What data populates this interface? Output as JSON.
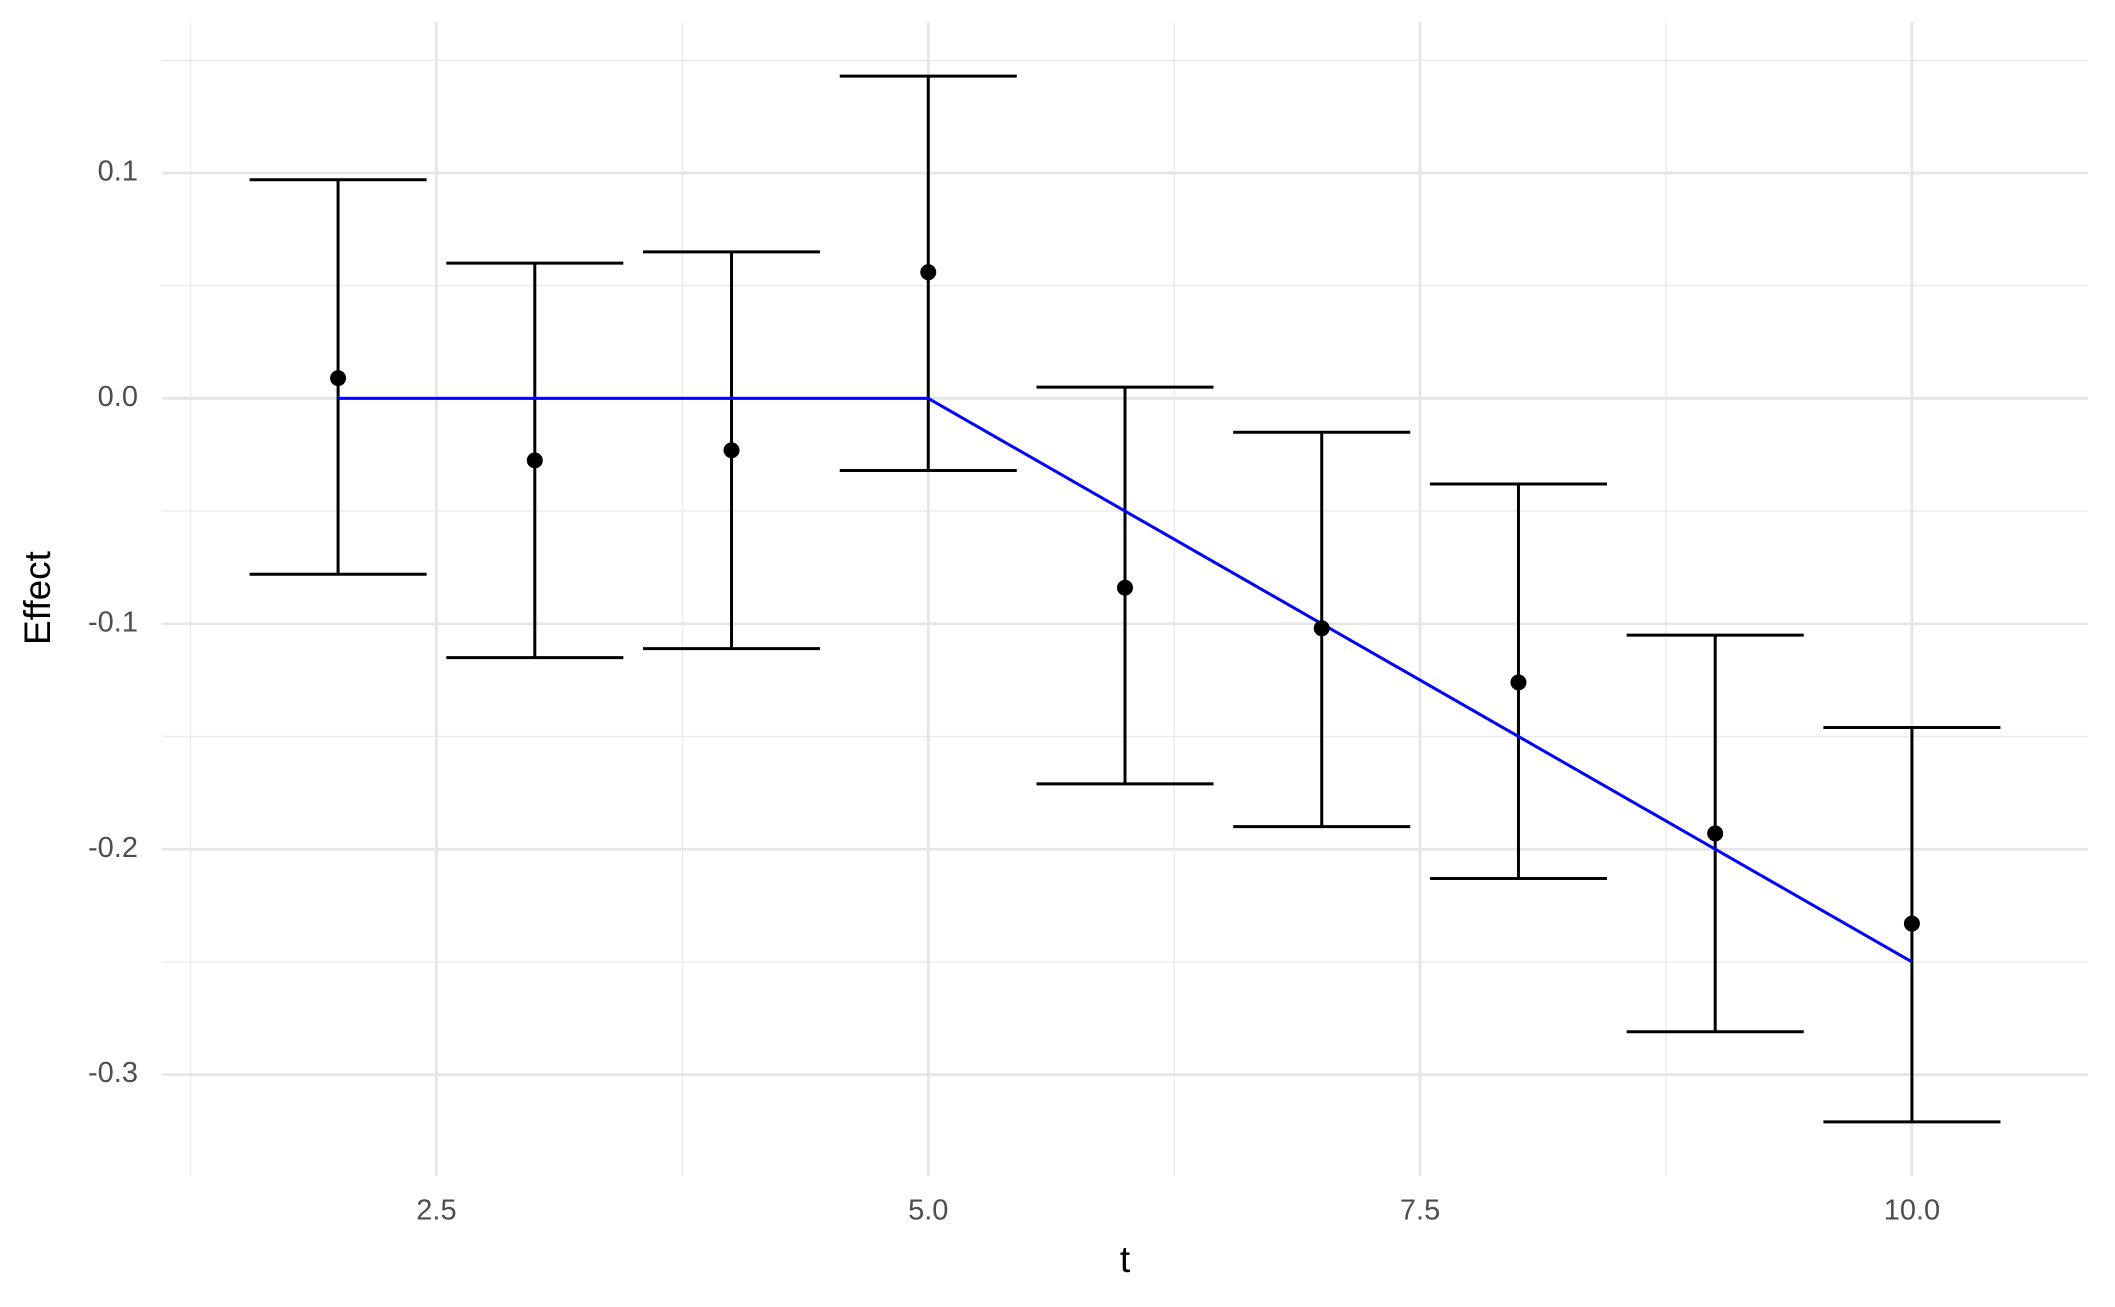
{
  "chart_data": {
    "type": "errorbar",
    "x_label": "t",
    "y_label": "Effect",
    "x": [
      2,
      3,
      4,
      5,
      6,
      7,
      8,
      9,
      10
    ],
    "series": [
      {
        "color": "#000000",
        "values": [
          0.009,
          -0.0275,
          -0.023,
          0.056,
          -0.084,
          -0.102,
          -0.126,
          -0.193,
          -0.233
        ],
        "lower": [
          -0.078,
          -0.115,
          -0.111,
          -0.032,
          -0.171,
          -0.19,
          -0.213,
          -0.281,
          -0.321
        ],
        "upper": [
          0.097,
          0.06,
          0.065,
          0.143,
          0.005,
          -0.015,
          -0.038,
          -0.105,
          -0.146
        ]
      }
    ],
    "line": {
      "color": "#0000ff",
      "x": [
        2,
        5,
        10
      ],
      "values": [
        0,
        0,
        -0.25
      ]
    },
    "xlim": [
      1.105,
      10.895
    ],
    "ylim": [
      -0.345,
      0.167
    ],
    "xticks": [
      2.5,
      5.0,
      7.5,
      10.0
    ],
    "yticks": [
      -0.3,
      -0.2,
      -0.1,
      0.0,
      0.1
    ],
    "grid": true
  }
}
